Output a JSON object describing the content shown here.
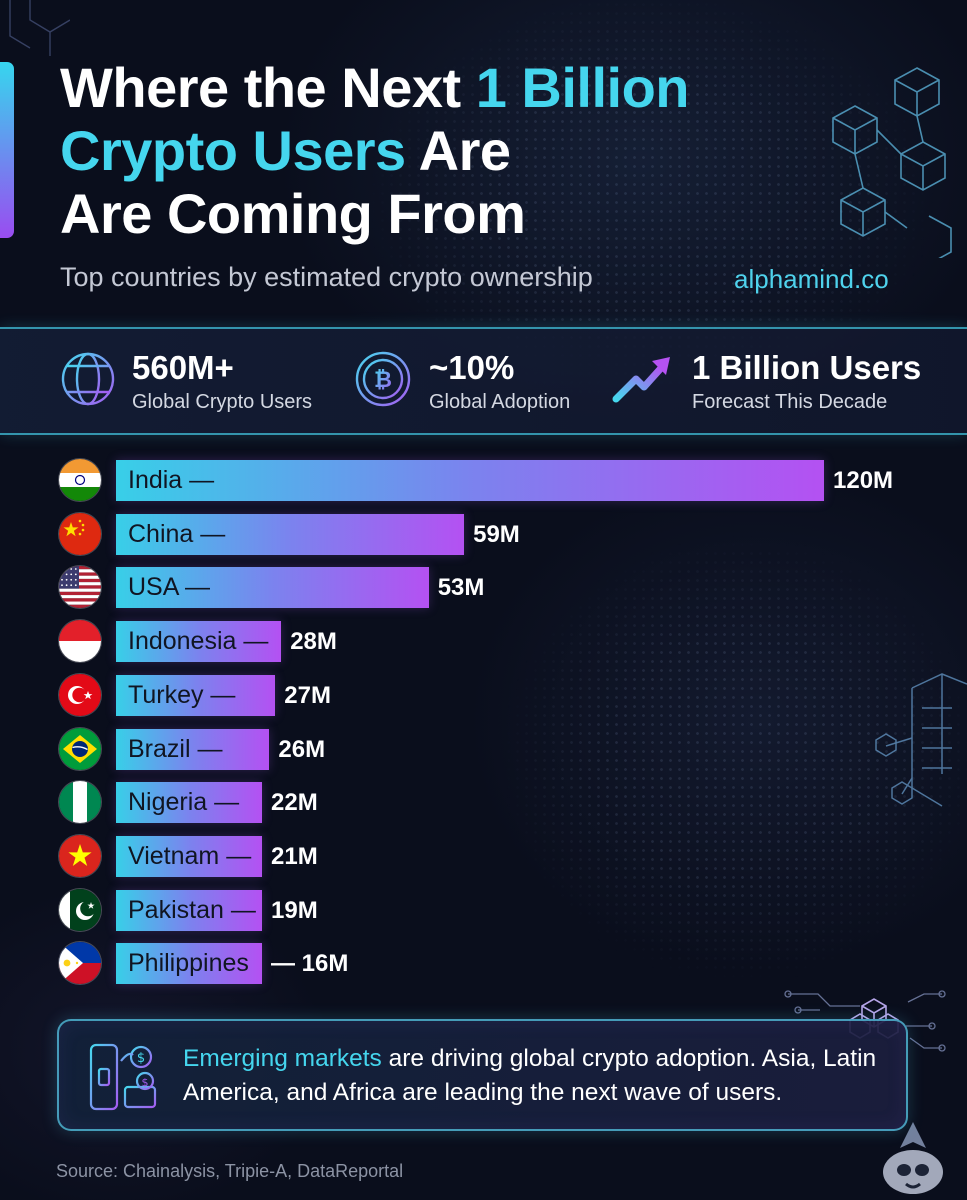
{
  "header": {
    "title_line1_white": "Where the Next ",
    "title_line1_cyan": "1 Billion",
    "title_line2_cyan": "Crypto Users",
    "title_line2_white": " Are",
    "title_line3_white": "Are Coming From",
    "subtitle": "Top countries by estimated crypto ownership",
    "website": "alphamind.co"
  },
  "stats": [
    {
      "value": "560M+",
      "label": "Global Crypto Users",
      "icon": "globe-icon"
    },
    {
      "value": "~10%",
      "label": "Global Adoption",
      "icon": "bitcoin-icon"
    },
    {
      "value": "1 Billion Users",
      "label": "Forecast This Decade",
      "icon": "trend-up-arrow-icon"
    }
  ],
  "chart_data": {
    "type": "bar",
    "orientation": "horizontal",
    "unit": "M",
    "categories": [
      "India",
      "China",
      "USA",
      "Indonesia",
      "Turkey",
      "Brazil",
      "Nigeria",
      "Vietnam",
      "Pakistan",
      "Philippines"
    ],
    "category_labels": [
      "India —",
      "China —",
      "USA —",
      "Indonesia —",
      "Turkey —",
      "Brazil —",
      "Nigeria —",
      "Vietnam —",
      "Pakistan —",
      "Philippines"
    ],
    "values": [
      120,
      59,
      53,
      28,
      27,
      26,
      22,
      21,
      19,
      16
    ],
    "value_labels": [
      "120M",
      "59M",
      "53M",
      "28M",
      "27M",
      "26M",
      "22M",
      "21M",
      "19M",
      "— 16M"
    ],
    "flags": [
      "india-flag-icon",
      "china-flag-icon",
      "usa-flag-icon",
      "indonesia-flag-icon",
      "turkey-flag-icon",
      "brazil-flag-icon",
      "nigeria-flag-icon",
      "vietnam-flag-icon",
      "pakistan-flag-icon",
      "philippines-flag-icon"
    ],
    "xlim": [
      0,
      120
    ],
    "grid": false,
    "bar_gradient": [
      "#38cfe8",
      "#b451f2"
    ]
  },
  "info": {
    "highlight": "Emerging markets",
    "text": " are driving global crypto adoption. Asia, Latin America, and Africa are leading the next wave of users.",
    "icon": "mobile-crypto-payment-icon"
  },
  "source": "Source: Chainalysis, Tripie-A, DataReportal",
  "colors": {
    "background": "#0a0e1c",
    "accent_cyan": "#45d6ee",
    "accent_purple": "#b451f2"
  }
}
